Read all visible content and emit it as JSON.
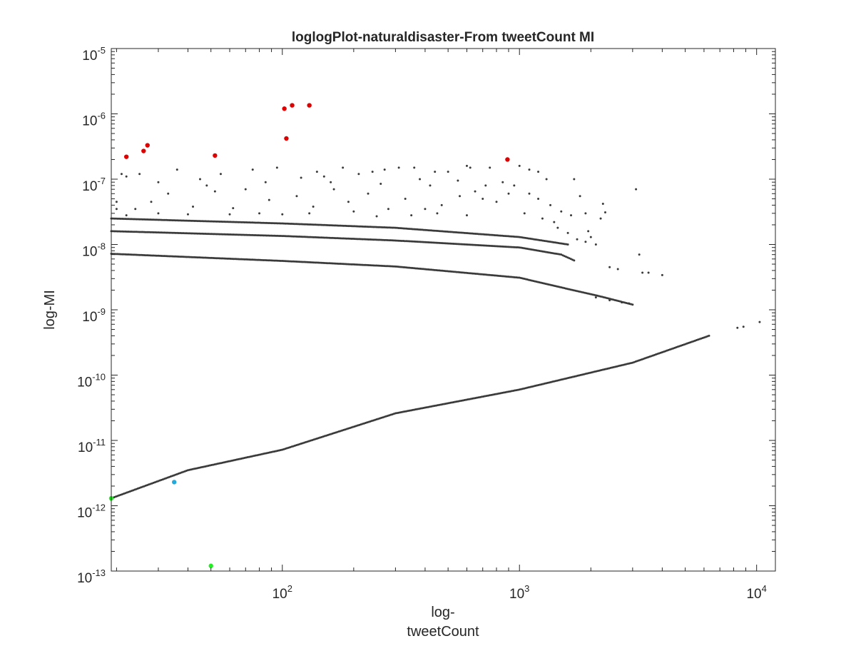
{
  "chart_data": {
    "type": "scatter",
    "title": "loglogPlot-naturaldisaster-From tweetCount MI",
    "xlabel_lines": [
      "log-",
      "tweetCount"
    ],
    "ylabel": "log-MI",
    "xscale": "log",
    "yscale": "log",
    "xlim": [
      19,
      12000
    ],
    "ylim": [
      1e-13,
      1e-05
    ],
    "grid": false,
    "legend": "none",
    "xticks": [
      {
        "value": 100,
        "base": "10",
        "exp": "2"
      },
      {
        "value": 1000,
        "base": "10",
        "exp": "3"
      },
      {
        "value": 10000,
        "base": "10",
        "exp": "4"
      }
    ],
    "yticks": [
      {
        "value": 1e-13,
        "base": "10",
        "exp": "-13"
      },
      {
        "value": 1e-12,
        "base": "10",
        "exp": "-12"
      },
      {
        "value": 1e-11,
        "base": "10",
        "exp": "-11"
      },
      {
        "value": 1e-10,
        "base": "10",
        "exp": "-10"
      },
      {
        "value": 1e-09,
        "base": "10",
        "exp": "-9"
      },
      {
        "value": 1e-08,
        "base": "10",
        "exp": "-8"
      },
      {
        "value": 1e-07,
        "base": "10",
        "exp": "-7"
      },
      {
        "value": 1e-06,
        "base": "10",
        "exp": "-6"
      },
      {
        "value": 1e-05,
        "base": "10",
        "exp": "-5"
      }
    ],
    "colors": {
      "default": "#3a3a3a",
      "highlight_red": "#e00000",
      "highlight_green": "#22ee22",
      "highlight_cyan": "#22aadd"
    },
    "series": [
      {
        "color": "default",
        "style": "dense-band",
        "points": [
          [
            19,
            1.3e-12
          ],
          [
            40,
            3.5e-12
          ],
          [
            100,
            7.2e-12
          ],
          [
            300,
            2.6e-11
          ],
          [
            1000,
            6e-11
          ],
          [
            3000,
            1.55e-10
          ],
          [
            6300,
            4e-10
          ]
        ]
      },
      {
        "color": "default",
        "style": "dense-band",
        "points": [
          [
            19,
            7.2e-09
          ],
          [
            100,
            5.6e-09
          ],
          [
            300,
            4.6e-09
          ],
          [
            1000,
            3.1e-09
          ],
          [
            1500,
            2.2e-09
          ],
          [
            2200,
            1.6e-09
          ],
          [
            3000,
            1.2e-09
          ]
        ]
      },
      {
        "color": "default",
        "style": "dense-band",
        "points": [
          [
            19,
            1.6e-08
          ],
          [
            100,
            1.35e-08
          ],
          [
            300,
            1.15e-08
          ],
          [
            1000,
            9e-09
          ],
          [
            1500,
            7e-09
          ],
          [
            1700,
            5.7e-09
          ]
        ]
      },
      {
        "color": "default",
        "style": "dense-band",
        "points": [
          [
            19,
            2.5e-08
          ],
          [
            100,
            2.1e-08
          ],
          [
            300,
            1.8e-08
          ],
          [
            1000,
            1.3e-08
          ],
          [
            1600,
            1e-08
          ]
        ]
      },
      {
        "color": "default",
        "style": "points",
        "points": [
          [
            8300,
            5.3e-10
          ],
          [
            8800,
            5.5e-10
          ],
          [
            10300,
            6.5e-10
          ],
          [
            2900,
            1.25e-09
          ],
          [
            2700,
            1.3e-09
          ],
          [
            2400,
            1.4e-09
          ],
          [
            2100,
            1.55e-09
          ],
          [
            4000,
            3.4e-09
          ],
          [
            3500,
            3.7e-09
          ],
          [
            3300,
            3.7e-09
          ],
          [
            3200,
            7e-09
          ],
          [
            2600,
            4.2e-09
          ],
          [
            2400,
            4.5e-09
          ],
          [
            2100,
            1e-08
          ],
          [
            2000,
            1.3e-08
          ],
          [
            1950,
            1.6e-08
          ],
          [
            2200,
            2.5e-08
          ],
          [
            2300,
            3.1e-08
          ],
          [
            2250,
            4.2e-08
          ],
          [
            3100,
            7e-08
          ],
          [
            1700,
            1e-07
          ],
          [
            1300,
            1e-07
          ],
          [
            1200,
            1.3e-07
          ],
          [
            1100,
            1.4e-07
          ],
          [
            1000,
            1.6e-07
          ],
          [
            750,
            1.5e-07
          ],
          [
            600,
            1.6e-07
          ],
          [
            620,
            1.5e-07
          ],
          [
            500,
            1.3e-07
          ],
          [
            440,
            1.3e-07
          ],
          [
            360,
            1.5e-07
          ],
          [
            310,
            1.5e-07
          ],
          [
            270,
            1.4e-07
          ],
          [
            240,
            1.3e-07
          ],
          [
            210,
            1.2e-07
          ],
          [
            180,
            1.5e-07
          ],
          [
            150,
            1.1e-07
          ],
          [
            140,
            1.3e-07
          ],
          [
            120,
            1.05e-07
          ],
          [
            95,
            1.5e-07
          ],
          [
            75,
            1.4e-07
          ],
          [
            55,
            1.2e-07
          ],
          [
            36,
            1.4e-07
          ],
          [
            22,
            1.1e-07
          ],
          [
            21,
            1.2e-07
          ],
          [
            25,
            1.2e-07
          ],
          [
            900,
            6e-08
          ],
          [
            950,
            8e-08
          ],
          [
            1100,
            6e-08
          ],
          [
            1200,
            5e-08
          ],
          [
            1350,
            4e-08
          ],
          [
            1500,
            3.2e-08
          ],
          [
            1650,
            2.8e-08
          ],
          [
            1800,
            5.5e-08
          ],
          [
            1900,
            3e-08
          ],
          [
            1400,
            2.2e-08
          ],
          [
            800,
            4.5e-08
          ],
          [
            700,
            5e-08
          ],
          [
            650,
            6.5e-08
          ],
          [
            560,
            5.5e-08
          ],
          [
            470,
            4e-08
          ],
          [
            420,
            8e-08
          ],
          [
            400,
            3.5e-08
          ],
          [
            330,
            5e-08
          ],
          [
            280,
            3.5e-08
          ],
          [
            230,
            6e-08
          ],
          [
            190,
            4.5e-08
          ],
          [
            165,
            7e-08
          ],
          [
            135,
            3.8e-08
          ],
          [
            115,
            5.5e-08
          ],
          [
            88,
            4.8e-08
          ],
          [
            70,
            7e-08
          ],
          [
            62,
            3.6e-08
          ],
          [
            48,
            8e-08
          ],
          [
            42,
            3.8e-08
          ],
          [
            33,
            6e-08
          ],
          [
            28,
            4.5e-08
          ],
          [
            24,
            3.5e-08
          ],
          [
            30,
            9e-08
          ],
          [
            45,
            1e-07
          ],
          [
            52,
            6.5e-08
          ],
          [
            85,
            9e-08
          ],
          [
            160,
            9e-08
          ],
          [
            260,
            8.5e-08
          ],
          [
            380,
            1e-07
          ],
          [
            550,
            9.5e-08
          ],
          [
            720,
            8e-08
          ],
          [
            850,
            9e-08
          ],
          [
            1050,
            3e-08
          ],
          [
            1250,
            2.5e-08
          ],
          [
            1450,
            1.8e-08
          ],
          [
            1600,
            1.5e-08
          ],
          [
            1750,
            1.2e-08
          ],
          [
            1900,
            1.1e-08
          ],
          [
            600,
            2.8e-08
          ],
          [
            450,
            3e-08
          ],
          [
            350,
            2.8e-08
          ],
          [
            250,
            2.7e-08
          ],
          [
            200,
            3.2e-08
          ],
          [
            130,
            3e-08
          ],
          [
            100,
            2.9e-08
          ],
          [
            80,
            3e-08
          ],
          [
            60,
            2.9e-08
          ],
          [
            40,
            2.9e-08
          ],
          [
            30,
            3e-08
          ],
          [
            22,
            2.8e-08
          ],
          [
            20,
            4.5e-08
          ],
          [
            20,
            3.5e-08
          ]
        ]
      },
      {
        "color": "highlight_red",
        "style": "large",
        "points": [
          [
            22,
            2.2e-07
          ],
          [
            26,
            2.7e-07
          ],
          [
            27,
            3.3e-07
          ],
          [
            52,
            2.3e-07
          ],
          [
            102,
            1.2e-06
          ],
          [
            104,
            4.2e-07
          ],
          [
            110,
            1.35e-06
          ],
          [
            130,
            1.35e-06
          ],
          [
            890,
            2e-07
          ]
        ]
      },
      {
        "color": "highlight_green",
        "style": "large",
        "points": [
          [
            19,
            1.3e-12
          ],
          [
            50,
            1.2e-13
          ]
        ]
      },
      {
        "color": "highlight_cyan",
        "style": "large",
        "points": [
          [
            35,
            2.3e-12
          ]
        ]
      }
    ]
  }
}
